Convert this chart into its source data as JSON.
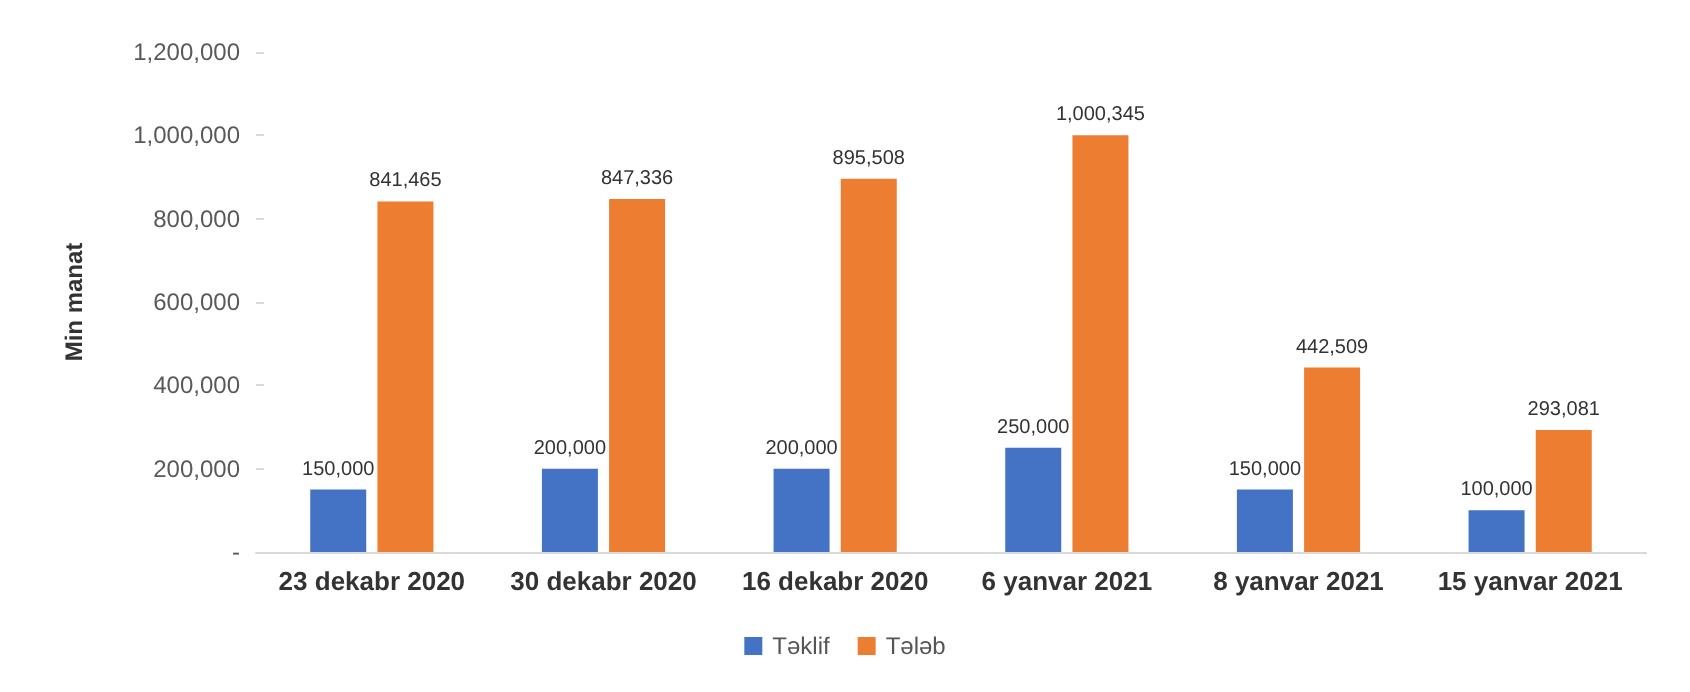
{
  "chart_data": {
    "type": "bar",
    "ylabel": "Min manat",
    "categories": [
      "23 dekabr 2020",
      "30 dekabr 2020",
      "16 dekabr 2020",
      "6 yanvar 2021",
      "8 yanvar 2021",
      "15 yanvar 2021"
    ],
    "series": [
      {
        "name": "Təklif",
        "color": "#4472c4",
        "values": [
          150000,
          200000,
          200000,
          250000,
          150000,
          100000
        ],
        "value_labels": [
          "150,000",
          "200,000",
          "200,000",
          "250,000",
          "150,000",
          "100,000"
        ]
      },
      {
        "name": "Tələb",
        "color": "#ed7d31",
        "values": [
          841465,
          847336,
          895508,
          1000345,
          442509,
          293081
        ],
        "value_labels": [
          "841,465",
          "847,336",
          "895,508",
          "1,000,345",
          "442,509",
          "293,081"
        ]
      }
    ],
    "ylim": [
      0,
      1200000
    ],
    "yticks": [
      {
        "value": 0,
        "label": "-"
      },
      {
        "value": 200000,
        "label": "200,000"
      },
      {
        "value": 400000,
        "label": "400,000"
      },
      {
        "value": 600000,
        "label": "600,000"
      },
      {
        "value": 800000,
        "label": "800,000"
      },
      {
        "value": 1000000,
        "label": "1,000,000"
      },
      {
        "value": 1200000,
        "label": "1,200,000"
      }
    ],
    "legend": "bottom"
  }
}
